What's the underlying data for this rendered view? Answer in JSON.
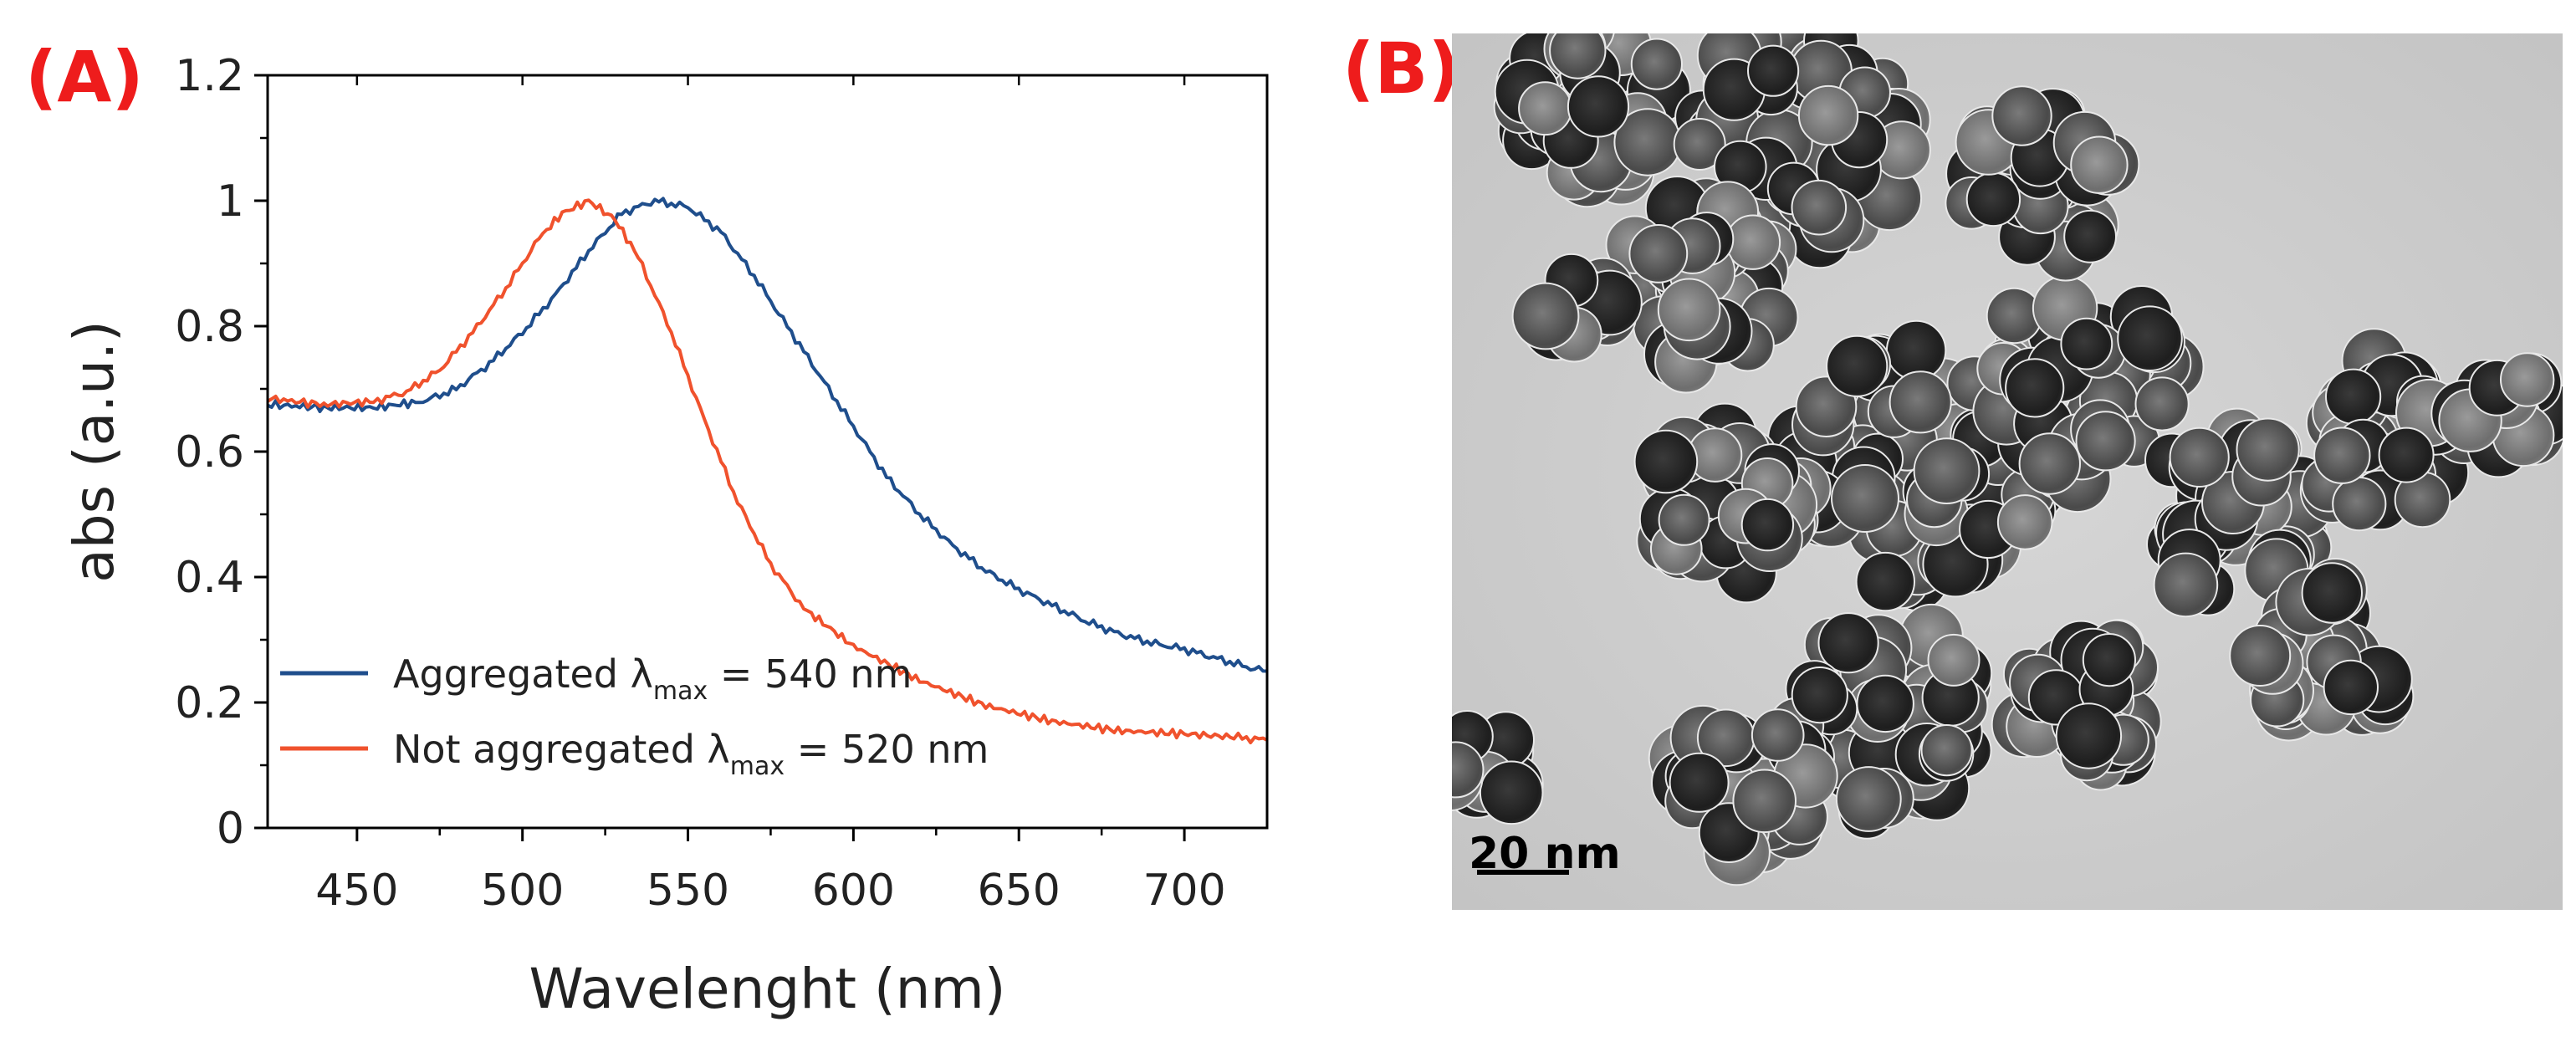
{
  "figure": {
    "panel_a_label": "(A)",
    "panel_b_label": "(B)",
    "scale_bar_label": "20 nm",
    "colors": {
      "panel_label": "#ee1c1c",
      "aggregated": "#1f4e8c",
      "not_aggregated": "#f0522d",
      "axis": "#000000"
    }
  },
  "chart_data": {
    "type": "line",
    "title": "",
    "xlabel": "Wavelenght (nm)",
    "ylabel": "abs (a.u.)",
    "xlim": [
      423,
      725
    ],
    "ylim": [
      0,
      1.2
    ],
    "xticks": [
      450,
      500,
      550,
      600,
      650,
      700
    ],
    "xtick_labels": [
      "450",
      "500",
      "550",
      "600",
      "650",
      "700"
    ],
    "yticks": [
      0,
      0.2,
      0.4,
      0.6,
      0.8,
      1,
      1.2
    ],
    "ytick_labels": [
      "0",
      "0.2",
      "0.4",
      "0.6",
      "0.8",
      "1",
      "1.2"
    ],
    "legend_position": "bottom-left",
    "series": [
      {
        "name": "Aggregated λmax = 540 nm",
        "legend_prefix": "Aggregated λ",
        "legend_sub": "max",
        "legend_suffix": " = 540 nm",
        "color": "#1f4e8c",
        "x": [
          423,
          440,
          455,
          470,
          480,
          490,
          500,
          510,
          520,
          530,
          540,
          550,
          560,
          570,
          580,
          590,
          600,
          610,
          620,
          630,
          640,
          650,
          660,
          670,
          680,
          690,
          700,
          710,
          720,
          725
        ],
        "y": [
          0.675,
          0.67,
          0.67,
          0.68,
          0.7,
          0.74,
          0.79,
          0.85,
          0.92,
          0.98,
          1.0,
          0.99,
          0.95,
          0.88,
          0.8,
          0.72,
          0.64,
          0.56,
          0.5,
          0.45,
          0.41,
          0.38,
          0.355,
          0.33,
          0.31,
          0.295,
          0.285,
          0.27,
          0.255,
          0.25
        ]
      },
      {
        "name": "Not aggregated λmax = 520 nm",
        "legend_prefix": "Not aggregated λ",
        "legend_sub": "max",
        "legend_suffix": " = 520 nm",
        "color": "#f0522d",
        "x": [
          423,
          440,
          455,
          465,
          475,
          485,
          495,
          505,
          512,
          520,
          528,
          535,
          545,
          555,
          565,
          575,
          585,
          600,
          620,
          640,
          660,
          680,
          700,
          715,
          725
        ],
        "y": [
          0.685,
          0.675,
          0.68,
          0.695,
          0.73,
          0.79,
          0.86,
          0.94,
          0.98,
          1.0,
          0.97,
          0.91,
          0.79,
          0.65,
          0.52,
          0.42,
          0.35,
          0.29,
          0.235,
          0.195,
          0.17,
          0.155,
          0.15,
          0.145,
          0.14
        ]
      }
    ]
  }
}
